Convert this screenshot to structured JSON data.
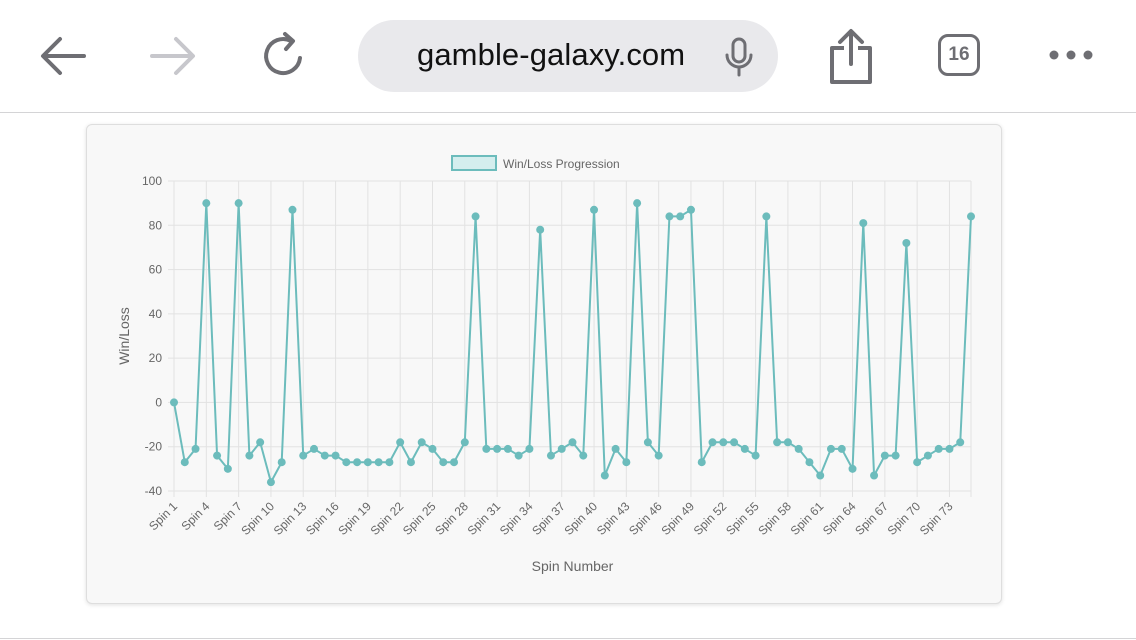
{
  "browser": {
    "url": "gamble-galaxy.com",
    "tab_count": "16",
    "icons": {
      "back": "arrow-left-icon",
      "forward": "arrow-right-icon",
      "reload": "reload-icon",
      "mic": "microphone-icon",
      "share": "share-icon",
      "tabs": "tabs-icon",
      "more": "more-dots-icon"
    }
  },
  "colors": {
    "line": "#6cbcbc",
    "legend_fill": "#d4eeee",
    "grid": "#e2e2e2",
    "tick_text": "#666666"
  },
  "chart_data": {
    "type": "line",
    "title": "",
    "legend": [
      "Win/Loss Progression"
    ],
    "legend_position": "top",
    "xlabel": "Spin Number",
    "ylabel": "Win/Loss",
    "ylim": [
      -40,
      100
    ],
    "yticks": [
      -40,
      -20,
      0,
      20,
      40,
      60,
      80,
      100
    ],
    "grid": true,
    "categories": [
      "Spin 1",
      "Spin 2",
      "Spin 3",
      "Spin 4",
      "Spin 5",
      "Spin 6",
      "Spin 7",
      "Spin 8",
      "Spin 9",
      "Spin 10",
      "Spin 11",
      "Spin 12",
      "Spin 13",
      "Spin 14",
      "Spin 15",
      "Spin 16",
      "Spin 17",
      "Spin 18",
      "Spin 19",
      "Spin 20",
      "Spin 21",
      "Spin 22",
      "Spin 23",
      "Spin 24",
      "Spin 25",
      "Spin 26",
      "Spin 27",
      "Spin 28",
      "Spin 29",
      "Spin 30",
      "Spin 31",
      "Spin 32",
      "Spin 33",
      "Spin 34",
      "Spin 35",
      "Spin 36",
      "Spin 37",
      "Spin 38",
      "Spin 39",
      "Spin 40",
      "Spin 41",
      "Spin 42",
      "Spin 43",
      "Spin 44",
      "Spin 45",
      "Spin 46",
      "Spin 47",
      "Spin 48",
      "Spin 49",
      "Spin 50",
      "Spin 51",
      "Spin 52",
      "Spin 53",
      "Spin 54",
      "Spin 55",
      "Spin 56",
      "Spin 57",
      "Spin 58",
      "Spin 59",
      "Spin 60",
      "Spin 61",
      "Spin 62",
      "Spin 63",
      "Spin 64",
      "Spin 65",
      "Spin 66",
      "Spin 67",
      "Spin 68",
      "Spin 69",
      "Spin 70",
      "Spin 71",
      "Spin 72",
      "Spin 73",
      "Spin 74",
      "Spin 75"
    ],
    "xtick_labels": [
      "Spin 1",
      "Spin 4",
      "Spin 7",
      "Spin 10",
      "Spin 13",
      "Spin 16",
      "Spin 19",
      "Spin 22",
      "Spin 25",
      "Spin 28",
      "Spin 31",
      "Spin 34",
      "Spin 37",
      "Spin 40",
      "Spin 43",
      "Spin 46",
      "Spin 49",
      "Spin 52",
      "Spin 55",
      "Spin 58",
      "Spin 61",
      "Spin 64",
      "Spin 67",
      "Spin 70",
      "Spin 73"
    ],
    "series": [
      {
        "name": "Win/Loss Progression",
        "values": [
          0,
          -27,
          -21,
          90,
          -24,
          -30,
          90,
          -24,
          -18,
          -36,
          -27,
          87,
          -24,
          -21,
          -24,
          -24,
          -27,
          -27,
          -27,
          -27,
          -27,
          -18,
          -27,
          -18,
          -21,
          -27,
          -27,
          -18,
          84,
          -21,
          -21,
          -21,
          -24,
          -21,
          78,
          -24,
          -21,
          -18,
          -24,
          87,
          -33,
          -21,
          -27,
          90,
          -18,
          -24,
          84,
          84,
          87,
          -27,
          -18,
          -18,
          -18,
          -21,
          -24,
          84,
          -18,
          -18,
          -21,
          -27,
          -33,
          -21,
          -21,
          -30,
          81,
          -33,
          -24,
          -24,
          72,
          -27,
          -24,
          -21,
          -21,
          -18,
          84
        ]
      }
    ]
  }
}
